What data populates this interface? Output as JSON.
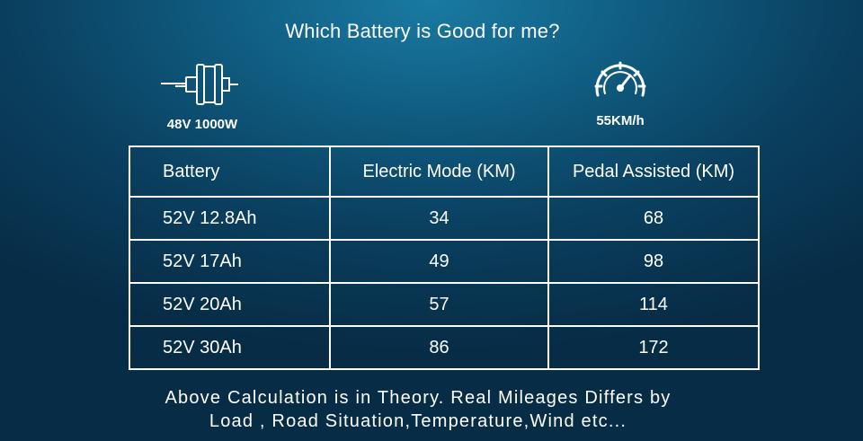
{
  "title": "Which Battery is Good for me?",
  "specs": {
    "motor": {
      "icon": "motor-icon",
      "label": "48V 1000W"
    },
    "speed": {
      "icon": "speedometer-icon",
      "label": "55KM/h"
    }
  },
  "table": {
    "headers": [
      "Battery",
      "Electric Mode (KM)",
      "Pedal Assisted (KM)"
    ],
    "rows": [
      [
        "52V 12.8Ah",
        "34",
        "68"
      ],
      [
        "52V 17Ah",
        "49",
        "98"
      ],
      [
        "52V 20Ah",
        "57",
        "114"
      ],
      [
        "52V 30Ah",
        "86",
        "172"
      ]
    ]
  },
  "note": {
    "line1": "Above Calculation is in Theory. Real Mileages Differs by",
    "line2": "Load , Road Situation,Temperature,Wind etc..."
  },
  "colors": {
    "background": "#0f5a7e",
    "text": "#ffffff"
  }
}
